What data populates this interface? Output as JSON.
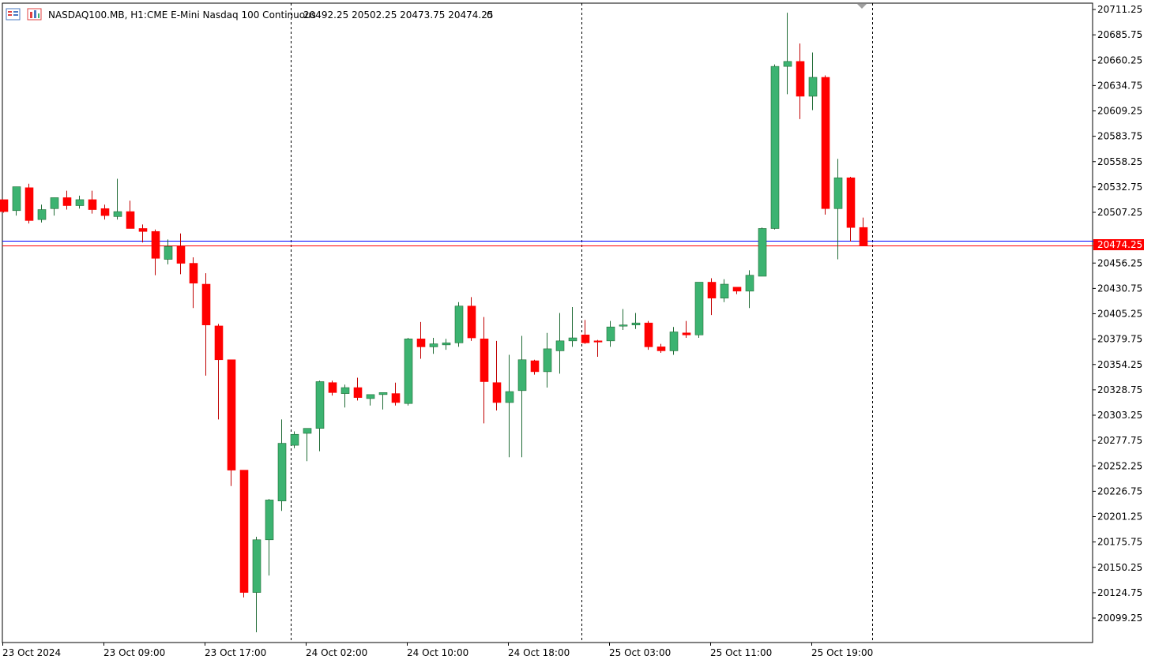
{
  "header": {
    "symbol": "NASDAQ100.MB, H1:",
    "description": "CME E-Mini Nasdaq 100 Continuous",
    "ohlc": "20492.25 20502.25 20473.75 20474.25",
    "volume": "0"
  },
  "colors": {
    "bull": "#3cb371",
    "bear": "#ff0000",
    "bid_line": "#0000ff",
    "last_line": "#ff0000",
    "axis_text": "#000000"
  },
  "chart_data": {
    "type": "candlestick",
    "symbol": "NASDAQ100.MB",
    "timeframe": "H1",
    "ylim": [
      20085,
      20715
    ],
    "yticks": [
      "20711.25",
      "20685.75",
      "20660.25",
      "20634.75",
      "20609.25",
      "20583.75",
      "20558.25",
      "20532.75",
      "20507.25",
      "20456.25",
      "20430.75",
      "20405.25",
      "20379.75",
      "20354.25",
      "20328.75",
      "20303.25",
      "20277.75",
      "20252.25",
      "20226.75",
      "20201.25",
      "20175.75",
      "20150.25",
      "20124.75",
      "20099.25"
    ],
    "xticks": [
      {
        "label": "23 Oct 2024",
        "index": 0
      },
      {
        "label": "23 Oct 09:00",
        "index": 8
      },
      {
        "label": "23 Oct 17:00",
        "index": 16
      },
      {
        "label": "24 Oct 02:00",
        "index": 24
      },
      {
        "label": "24 Oct 10:00",
        "index": 32
      },
      {
        "label": "24 Oct 18:00",
        "index": 40
      },
      {
        "label": "25 Oct 03:00",
        "index": 48
      },
      {
        "label": "25 Oct 11:00",
        "index": 56
      },
      {
        "label": "25 Oct 19:00",
        "index": 64
      }
    ],
    "day_separators": [
      22.75,
      45.75,
      68.75
    ],
    "last_price_label": "20474.25",
    "last_price": 20474.25,
    "bid_price": 20478.5,
    "candles": [
      [
        20520,
        20520,
        20507,
        20508
      ],
      [
        20509,
        20533,
        20504,
        20533
      ],
      [
        20532,
        20536,
        20496,
        20499
      ],
      [
        20500,
        20515,
        20497,
        20510
      ],
      [
        20511,
        20522,
        20504,
        20522
      ],
      [
        20522,
        20529,
        20510,
        20514
      ],
      [
        20514,
        20524,
        20511,
        20520
      ],
      [
        20520,
        20529,
        20506,
        20510
      ],
      [
        20511,
        20515,
        20500,
        20504
      ],
      [
        20503,
        20541,
        20500,
        20508
      ],
      [
        20508,
        20519,
        20491,
        20491
      ],
      [
        20491,
        20495,
        20477,
        20488
      ],
      [
        20488,
        20490,
        20444,
        20461
      ],
      [
        20460,
        20480,
        20455,
        20473
      ],
      [
        20473,
        20486,
        20445,
        20456
      ],
      [
        20456,
        20462,
        20411,
        20436
      ],
      [
        20435,
        20446,
        20343,
        20394
      ],
      [
        20393,
        20395,
        20299,
        20359
      ],
      [
        20359,
        20359,
        20232,
        20248
      ],
      [
        20248,
        20248,
        20120,
        20125
      ],
      [
        20125,
        20181,
        20085,
        20178
      ],
      [
        20178,
        20219,
        20142,
        20218
      ],
      [
        20217,
        20299,
        20207,
        20275
      ],
      [
        20273,
        20287,
        20270,
        20284
      ],
      [
        20285,
        20288,
        20257,
        20290
      ],
      [
        20290,
        20338,
        20267,
        20337
      ],
      [
        20336,
        20338,
        20323,
        20326
      ],
      [
        20325,
        20334,
        20311,
        20331
      ],
      [
        20331,
        20341,
        20318,
        20321
      ],
      [
        20320,
        20323,
        20313,
        20324
      ],
      [
        20324,
        20325,
        20309,
        20326
      ],
      [
        20325,
        20336,
        20313,
        20316
      ],
      [
        20315,
        20381,
        20313,
        20380
      ],
      [
        20380,
        20397,
        20360,
        20372
      ],
      [
        20372,
        20381,
        20365,
        20375
      ],
      [
        20374,
        20380,
        20369,
        20376
      ],
      [
        20376,
        20417,
        20372,
        20413
      ],
      [
        20413,
        20422,
        20378,
        20381
      ],
      [
        20380,
        20402,
        20295,
        20337
      ],
      [
        20336,
        20378,
        20308,
        20316
      ],
      [
        20316,
        20364,
        20261,
        20327
      ],
      [
        20328,
        20383,
        20261,
        20359
      ],
      [
        20358,
        20359,
        20344,
        20347
      ],
      [
        20347,
        20386,
        20331,
        20370
      ],
      [
        20368,
        20406,
        20345,
        20378
      ],
      [
        20378,
        20412,
        20372,
        20381
      ],
      [
        20384,
        20399,
        20375,
        20376
      ],
      [
        20378,
        20379,
        20362,
        20377
      ],
      [
        20378,
        20398,
        20372,
        20392
      ],
      [
        20393,
        20410,
        20389,
        20394
      ],
      [
        20394,
        20406,
        20390,
        20396
      ],
      [
        20396,
        20398,
        20369,
        20372
      ],
      [
        20372,
        20375,
        20366,
        20368
      ],
      [
        20368,
        20392,
        20364,
        20387
      ],
      [
        20386,
        20398,
        20381,
        20384
      ],
      [
        20384,
        20437,
        20381,
        20437
      ],
      [
        20437,
        20441,
        20404,
        20421
      ],
      [
        20421,
        20440,
        20417,
        20435
      ],
      [
        20432,
        20432,
        20425,
        20428
      ],
      [
        20428,
        20449,
        20411,
        20444
      ],
      [
        20443,
        20492,
        20443,
        20491
      ],
      [
        20491,
        20656,
        20490,
        20654
      ],
      [
        20654,
        20708,
        20626,
        20659
      ],
      [
        20659,
        20677,
        20601,
        20624
      ],
      [
        20624,
        20668,
        20610,
        20643
      ],
      [
        20643,
        20645,
        20505,
        20511
      ],
      [
        20511,
        20561,
        20460,
        20542
      ],
      [
        20542,
        20543,
        20478,
        20492
      ],
      [
        20492,
        20502,
        20474,
        20474
      ]
    ]
  }
}
